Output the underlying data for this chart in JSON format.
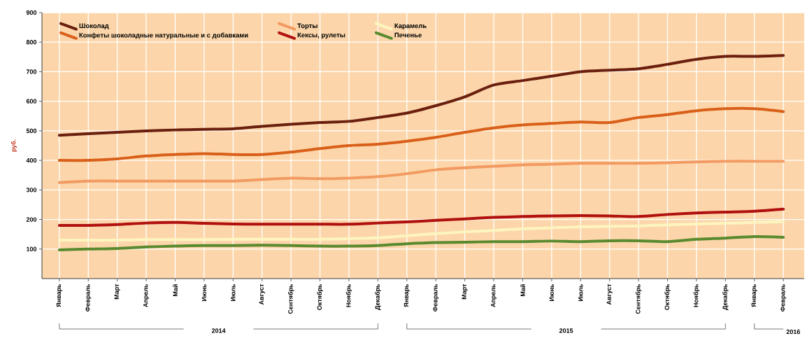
{
  "chart_data": {
    "type": "line",
    "ylabel": "руб.",
    "categories": [
      "Январь",
      "Февраль",
      "Март",
      "Апрель",
      "Май",
      "Июнь",
      "Июль",
      "Август",
      "Сентябрь",
      "Октябрь",
      "Ноябрь",
      "Декабрь",
      "Январь",
      "Февраль",
      "Март",
      "Апрель",
      "Май",
      "Июнь",
      "Июль",
      "Август",
      "Сентябрь",
      "Октябрь",
      "Ноябрь",
      "Декабрь",
      "Январь",
      "Февраль"
    ],
    "series": [
      {
        "name": "Шоколад",
        "color": "#6b1f0f",
        "values": [
          485,
          490,
          495,
          500,
          503,
          505,
          507,
          515,
          522,
          528,
          532,
          545,
          560,
          585,
          615,
          655,
          670,
          685,
          700,
          705,
          710,
          725,
          742,
          752,
          752,
          755
        ]
      },
      {
        "name": "Конфеты шоколадные натуральные и с добавками",
        "color": "#d9601a",
        "values": [
          400,
          400,
          405,
          415,
          420,
          423,
          420,
          420,
          428,
          440,
          450,
          455,
          465,
          478,
          495,
          510,
          520,
          525,
          530,
          528,
          545,
          555,
          568,
          575,
          575,
          565
        ]
      },
      {
        "name": "Торты",
        "color": "#f29a62",
        "values": [
          325,
          330,
          330,
          330,
          330,
          330,
          330,
          335,
          340,
          338,
          340,
          345,
          355,
          368,
          375,
          380,
          385,
          387,
          390,
          390,
          390,
          392,
          395,
          397,
          397,
          397
        ]
      },
      {
        "name": "Кексы, рулеты",
        "color": "#b0100e",
        "values": [
          180,
          180,
          183,
          188,
          190,
          187,
          185,
          184,
          184,
          184,
          184,
          188,
          192,
          197,
          202,
          207,
          210,
          212,
          213,
          212,
          210,
          217,
          222,
          225,
          228,
          235
        ]
      },
      {
        "name": "Карамель",
        "color": "#fdf5c0",
        "values": [
          130,
          130,
          130,
          132,
          132,
          132,
          133,
          133,
          133,
          133,
          135,
          138,
          145,
          152,
          158,
          163,
          168,
          172,
          175,
          177,
          178,
          182,
          185,
          187,
          190,
          193
        ]
      },
      {
        "name": "Печенье",
        "color": "#5a8a2e",
        "values": [
          97,
          100,
          102,
          107,
          110,
          112,
          112,
          113,
          112,
          110,
          110,
          112,
          118,
          122,
          123,
          125,
          125,
          127,
          125,
          128,
          128,
          125,
          133,
          137,
          142,
          140
        ]
      }
    ],
    "ylim": [
      0,
      900
    ],
    "yticks": [
      100,
      200,
      300,
      400,
      500,
      600,
      700,
      800,
      900
    ],
    "grid": true,
    "legend": "top left",
    "marker": "none",
    "line_style": "solid",
    "annotations": [
      "2014",
      "2015",
      "2016"
    ]
  }
}
